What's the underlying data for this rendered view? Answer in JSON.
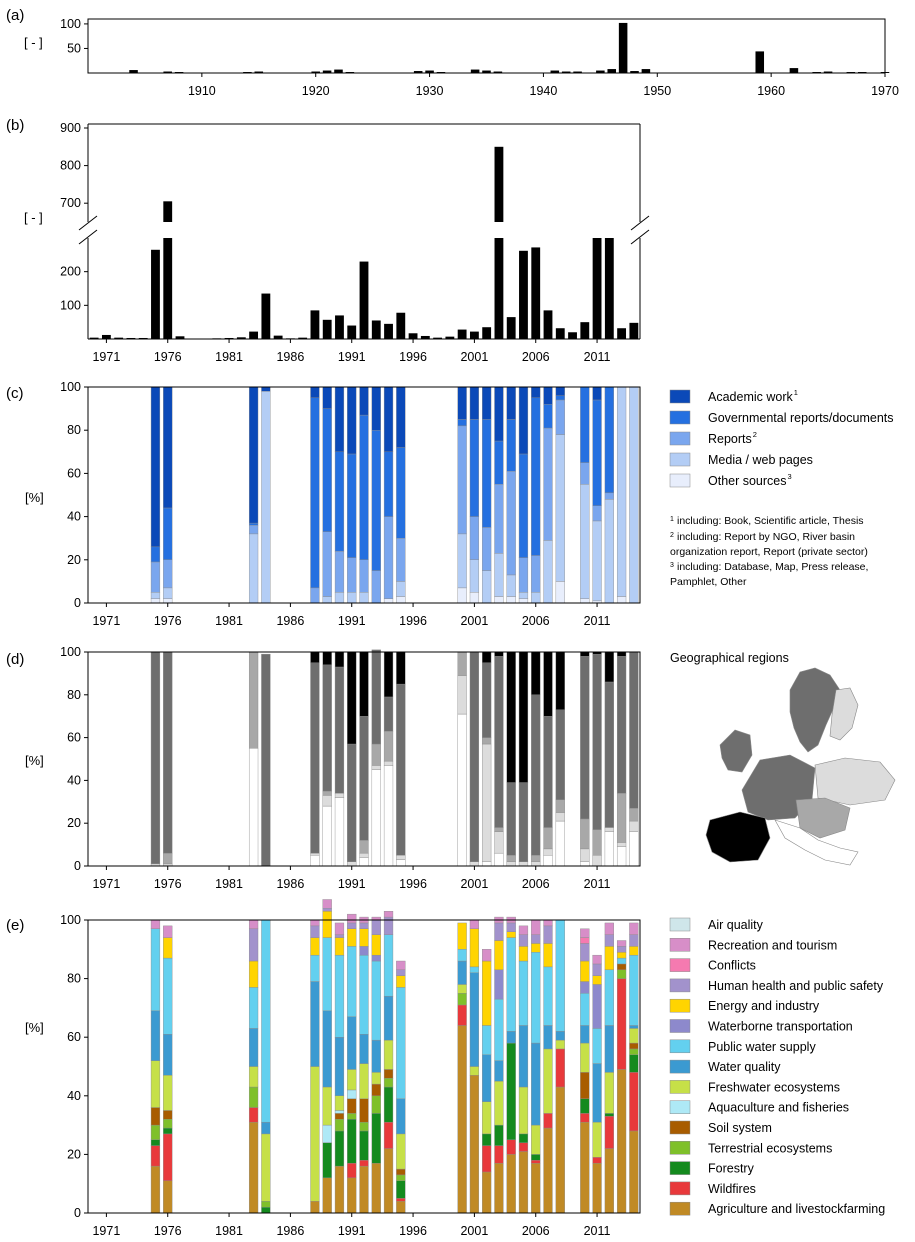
{
  "panels": {
    "a": {
      "label": "(a)",
      "ylabel": "[ - ]"
    },
    "b": {
      "label": "(b)",
      "ylabel": "[ - ]"
    },
    "c": {
      "label": "(c)",
      "ylabel": "[%]"
    },
    "d": {
      "label": "(d)",
      "ylabel": "[%]"
    },
    "e": {
      "label": "(e)",
      "ylabel": "[%]"
    }
  },
  "footnotes_c": [
    "including: Book, Scientific article, Thesis",
    "including: Report by NGO, River basin",
    "organization report, Report (private sector)",
    "including: Database, Map, Press release,",
    "Pamphlet, Other"
  ],
  "map_title": "Geographical regions",
  "chart_data": [
    {
      "id": "a",
      "type": "bar",
      "xlim": [
        1900,
        1970
      ],
      "ylim": [
        0,
        110
      ],
      "yticks": [
        50,
        100
      ],
      "xticks": [
        "1910",
        "1920",
        "1930",
        "1940",
        "1950",
        "1960",
        "1970"
      ],
      "x": [
        1904,
        1907,
        1908,
        1913,
        1914,
        1915,
        1918,
        1919,
        1920,
        1921,
        1922,
        1923,
        1926,
        1929,
        1930,
        1931,
        1934,
        1935,
        1936,
        1941,
        1942,
        1943,
        1945,
        1946,
        1947,
        1948,
        1949,
        1955,
        1956,
        1959,
        1962,
        1964,
        1965,
        1967,
        1968,
        1970
      ],
      "values": [
        6,
        3,
        2,
        1,
        2,
        3,
        1,
        1,
        3,
        5,
        7,
        2,
        1,
        4,
        5,
        2,
        7,
        5,
        3,
        5,
        3,
        3,
        5,
        8,
        102,
        4,
        8,
        1,
        1,
        44,
        10,
        2,
        3,
        2,
        2,
        2
      ]
    },
    {
      "id": "b",
      "type": "bar",
      "broken_axis": true,
      "lower_ylim": [
        0,
        300
      ],
      "upper_ylim": [
        650,
        900
      ],
      "lower_yticks": [
        100,
        200
      ],
      "upper_yticks": [
        700,
        800,
        900
      ],
      "xticks": [
        "1971",
        "1976",
        "1981",
        "1986",
        "1991",
        "1996",
        "2001",
        "2006",
        "2011"
      ],
      "x": [
        1970,
        1971,
        1972,
        1973,
        1974,
        1975,
        1976,
        1977,
        1978,
        1979,
        1980,
        1981,
        1982,
        1983,
        1984,
        1985,
        1986,
        1987,
        1988,
        1989,
        1990,
        1991,
        1992,
        1993,
        1994,
        1995,
        1996,
        1997,
        1998,
        1999,
        2000,
        2001,
        2002,
        2003,
        2004,
        2005,
        2006,
        2007,
        2008,
        2009,
        2010,
        2011,
        2012,
        2013,
        2014
      ],
      "values": [
        4,
        12,
        4,
        3,
        3,
        265,
        705,
        8,
        0,
        0,
        2,
        3,
        5,
        22,
        135,
        10,
        2,
        4,
        85,
        57,
        70,
        40,
        230,
        55,
        45,
        78,
        17,
        9,
        4,
        7,
        28,
        22,
        35,
        850,
        65,
        262,
        272,
        85,
        32,
        20,
        50,
        300,
        300,
        32,
        48
      ]
    },
    {
      "id": "c",
      "type": "bar",
      "stacked": true,
      "ylim": [
        0,
        100
      ],
      "yticks": [
        0,
        20,
        40,
        60,
        80,
        100
      ],
      "xticks": [
        "1971",
        "1976",
        "1981",
        "1986",
        "1991",
        "1996",
        "2001",
        "2006",
        "2011"
      ],
      "categories": [
        1975,
        1976,
        1983,
        1984,
        1988,
        1989,
        1990,
        1991,
        1992,
        1993,
        1994,
        1995,
        2000,
        2001,
        2002,
        2003,
        2004,
        2005,
        2006,
        2007,
        2008,
        2010,
        2011,
        2012,
        2013,
        2014
      ],
      "series": [
        {
          "name": "Other sources",
          "color": "#e8eefc",
          "values": [
            2,
            2,
            0,
            0,
            0,
            0,
            0,
            0,
            0,
            0,
            2,
            3,
            7,
            5,
            0,
            3,
            3,
            2,
            0,
            0,
            10,
            2,
            1,
            0,
            3,
            0
          ]
        },
        {
          "name": "Media / web pages",
          "color": "#b3cdf5",
          "values": [
            3,
            5,
            32,
            98,
            0,
            3,
            5,
            5,
            5,
            0,
            0,
            7,
            25,
            15,
            15,
            20,
            10,
            3,
            5,
            29,
            68,
            53,
            37,
            48,
            97,
            100
          ]
        },
        {
          "name": "Reports",
          "color": "#7aa6ee",
          "values": [
            14,
            13,
            4,
            0,
            7,
            30,
            19,
            16,
            15,
            15,
            38,
            20,
            50,
            20,
            20,
            32,
            48,
            16,
            17,
            52,
            16,
            10,
            7,
            3,
            0,
            0
          ]
        },
        {
          "name": "Governmental reports/documents",
          "color": "#2570e0",
          "values": [
            7,
            24,
            1,
            0,
            88,
            57,
            46,
            48,
            67,
            65,
            30,
            42,
            3,
            45,
            50,
            20,
            24,
            48,
            73,
            11,
            2,
            35,
            49,
            49,
            0,
            0
          ]
        },
        {
          "name": "Academic work",
          "color": "#0b49b8",
          "values": [
            74,
            56,
            63,
            2,
            5,
            10,
            30,
            31,
            13,
            20,
            30,
            28,
            15,
            15,
            15,
            25,
            15,
            31,
            5,
            8,
            4,
            0,
            6,
            0,
            0,
            0
          ]
        }
      ]
    },
    {
      "id": "d",
      "type": "bar",
      "stacked": true,
      "ylim": [
        0,
        100
      ],
      "yticks": [
        0,
        20,
        40,
        60,
        80,
        100
      ],
      "xticks": [
        "1971",
        "1976",
        "1981",
        "1986",
        "1991",
        "1996",
        "2001",
        "2006",
        "2011"
      ],
      "categories": [
        1975,
        1976,
        1983,
        1984,
        1988,
        1989,
        1990,
        1991,
        1992,
        1993,
        1994,
        1995,
        2000,
        2001,
        2002,
        2003,
        2004,
        2005,
        2006,
        2007,
        2008,
        2010,
        2011,
        2012,
        2013,
        2014
      ],
      "series": [
        {
          "color": "#ffffff",
          "values": [
            0,
            0,
            55,
            0,
            5,
            28,
            32,
            0,
            4,
            45,
            47,
            3,
            71,
            0,
            2,
            6,
            0,
            0,
            0,
            5,
            21,
            2,
            0,
            16,
            9,
            16
          ]
        },
        {
          "color": "#dcdcdc",
          "values": [
            1,
            1,
            0,
            0,
            1,
            5,
            2,
            2,
            2,
            2,
            2,
            2,
            18,
            2,
            55,
            10,
            2,
            2,
            2,
            3,
            4,
            6,
            5,
            2,
            2,
            5
          ]
        },
        {
          "color": "#a8a8a8",
          "values": [
            0,
            5,
            45,
            0,
            0,
            2,
            0,
            0,
            6,
            10,
            14,
            0,
            11,
            0,
            3,
            2,
            3,
            0,
            3,
            10,
            6,
            14,
            12,
            0,
            23,
            6
          ]
        },
        {
          "color": "#6e6e6e",
          "values": [
            99,
            94,
            0,
            99,
            89,
            59,
            59,
            55,
            58,
            44,
            16,
            80,
            0,
            98,
            35,
            80,
            34,
            37,
            75,
            52,
            42,
            76,
            82,
            68,
            64,
            73
          ]
        },
        {
          "color": "#000000",
          "values": [
            0,
            0,
            0,
            0,
            5,
            6,
            7,
            43,
            30,
            0,
            21,
            15,
            0,
            0,
            5,
            2,
            61,
            61,
            20,
            30,
            27,
            2,
            1,
            14,
            2,
            0
          ]
        }
      ]
    },
    {
      "id": "e",
      "type": "bar",
      "stacked": true,
      "ylim": [
        0,
        100
      ],
      "yticks": [
        0,
        20,
        40,
        60,
        80,
        100
      ],
      "xticks": [
        "1971",
        "1976",
        "1981",
        "1986",
        "1991",
        "1996",
        "2001",
        "2006",
        "2011"
      ],
      "categories": [
        1975,
        1976,
        1983,
        1984,
        1988,
        1989,
        1990,
        1991,
        1992,
        1993,
        1994,
        1995,
        2000,
        2001,
        2002,
        2003,
        2004,
        2005,
        2006,
        2007,
        2008,
        2010,
        2011,
        2012,
        2013,
        2014
      ],
      "series": [
        {
          "name": "Agriculture and livestockfarming",
          "color": "#c08a25",
          "values": [
            16,
            11,
            31,
            0,
            4,
            12,
            16,
            12,
            16,
            17,
            22,
            4,
            64,
            47,
            14,
            17,
            20,
            21,
            17,
            29,
            43,
            31,
            17,
            22,
            49,
            28
          ]
        },
        {
          "name": "Wildfires",
          "color": "#e8393b",
          "values": [
            7,
            16,
            5,
            0,
            0,
            0,
            0,
            5,
            2,
            0,
            9,
            1,
            7,
            0,
            9,
            6,
            5,
            3,
            1,
            5,
            13,
            3,
            2,
            11,
            31,
            20
          ]
        },
        {
          "name": "Forestry",
          "color": "#148a1e",
          "values": [
            2,
            2,
            0,
            2,
            0,
            12,
            12,
            15,
            10,
            17,
            12,
            6,
            0,
            0,
            4,
            7,
            33,
            3,
            2,
            0,
            0,
            5,
            0,
            1,
            0,
            6
          ]
        },
        {
          "name": "Terrestrial ecosystems",
          "color": "#7fc02a",
          "values": [
            5,
            3,
            7,
            2,
            0,
            0,
            4,
            2,
            3,
            6,
            3,
            2,
            4,
            0,
            0,
            0,
            0,
            0,
            0,
            0,
            0,
            0,
            0,
            0,
            3,
            2
          ]
        },
        {
          "name": "Soil system",
          "color": "#a85c00",
          "values": [
            6,
            3,
            0,
            0,
            0,
            0,
            2,
            5,
            8,
            4,
            3,
            2,
            0,
            0,
            0,
            0,
            0,
            0,
            0,
            0,
            0,
            9,
            0,
            0,
            2,
            2
          ]
        },
        {
          "name": "Aquaculture and fisheries",
          "color": "#aee9f6",
          "values": [
            0,
            0,
            0,
            0,
            0,
            6,
            1,
            3,
            0,
            0,
            0,
            0,
            0,
            0,
            0,
            0,
            0,
            0,
            0,
            0,
            0,
            0,
            0,
            0,
            0,
            0
          ]
        },
        {
          "name": "Freshwater ecosystems",
          "color": "#c6e048",
          "values": [
            16,
            12,
            7,
            23,
            46,
            13,
            5,
            7,
            12,
            4,
            10,
            12,
            3,
            3,
            11,
            15,
            0,
            16,
            10,
            22,
            3,
            10,
            12,
            14,
            0,
            5
          ]
        },
        {
          "name": "Water quality",
          "color": "#3b9ad1",
          "values": [
            17,
            14,
            13,
            4,
            29,
            26,
            20,
            18,
            10,
            11,
            15,
            12,
            8,
            32,
            16,
            7,
            4,
            21,
            28,
            8,
            3,
            6,
            20,
            16,
            0,
            1
          ]
        },
        {
          "name": "Public water supply",
          "color": "#63d0ef",
          "values": [
            28,
            26,
            14,
            69,
            9,
            25,
            28,
            24,
            27,
            27,
            21,
            38,
            4,
            2,
            10,
            21,
            32,
            22,
            31,
            20,
            38,
            11,
            12,
            19,
            2,
            24
          ]
        },
        {
          "name": "Waterborne transportation",
          "color": "#8d89cc",
          "values": [
            0,
            0,
            0,
            0,
            0,
            0,
            0,
            0,
            3,
            2,
            0,
            0,
            0,
            0,
            0,
            10,
            0,
            0,
            0,
            0,
            0,
            4,
            15,
            0,
            0,
            0
          ]
        },
        {
          "name": "Energy and industry",
          "color": "#ffd400",
          "values": [
            0,
            7,
            9,
            0,
            6,
            9,
            6,
            6,
            6,
            7,
            0,
            4,
            9,
            13,
            22,
            10,
            2,
            5,
            3,
            8,
            0,
            7,
            3,
            8,
            2,
            3
          ]
        },
        {
          "name": "Human health and public safety",
          "color": "#a292cc",
          "values": [
            0,
            0,
            11,
            0,
            4,
            1,
            1,
            2,
            2,
            5,
            6,
            2,
            0,
            0,
            0,
            6,
            3,
            4,
            3,
            6,
            0,
            6,
            4,
            4,
            2,
            4
          ]
        },
        {
          "name": "Conflicts",
          "color": "#f57ab0",
          "values": [
            0,
            0,
            0,
            0,
            0,
            0,
            0,
            0,
            0,
            0,
            0,
            0,
            0,
            0,
            0,
            0,
            0,
            0,
            0,
            0,
            0,
            2,
            0,
            0,
            0,
            0
          ]
        },
        {
          "name": "Recreation and tourism",
          "color": "#d78ec8",
          "values": [
            3,
            4,
            3,
            0,
            2,
            3,
            4,
            3,
            2,
            1,
            2,
            3,
            0,
            3,
            4,
            2,
            2,
            3,
            5,
            2,
            0,
            3,
            3,
            4,
            2,
            4
          ]
        },
        {
          "name": "Air quality",
          "color": "#cfe6ea",
          "values": [
            0,
            0,
            0,
            0,
            0,
            0,
            0,
            0,
            0,
            0,
            0,
            0,
            0,
            0,
            0,
            0,
            0,
            0,
            0,
            0,
            0,
            0,
            0,
            0,
            0,
            0
          ]
        }
      ]
    }
  ]
}
